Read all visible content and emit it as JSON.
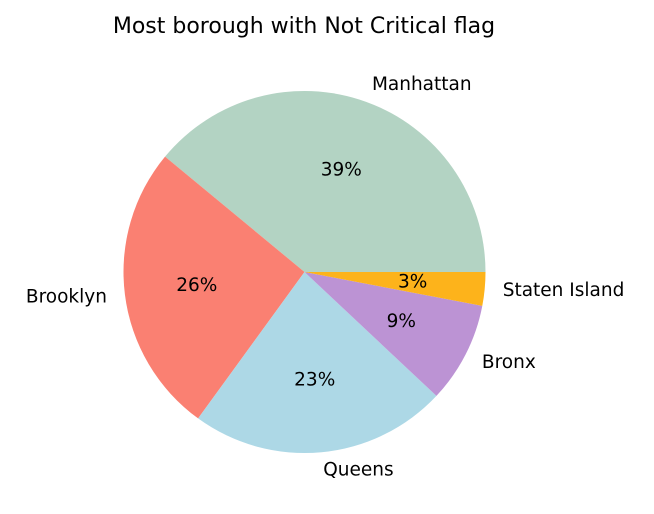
{
  "chart_data": {
    "type": "pie",
    "title": "Most borough with Not Critical flag",
    "start_angle_deg": 0,
    "direction": "counterclockwise",
    "slices": [
      {
        "label": "Manhattan",
        "value": 39,
        "pct_label": "39%",
        "color": "#b3d3c3"
      },
      {
        "label": "Brooklyn",
        "value": 26,
        "pct_label": "26%",
        "color": "#fa8072"
      },
      {
        "label": "Queens",
        "value": 23,
        "pct_label": "23%",
        "color": "#add8e6"
      },
      {
        "label": "Bronx",
        "value": 9,
        "pct_label": "9%",
        "color": "#bc93d4"
      },
      {
        "label": "Staten Island",
        "value": 3,
        "pct_label": "3%",
        "color": "#fdb31b"
      }
    ]
  }
}
